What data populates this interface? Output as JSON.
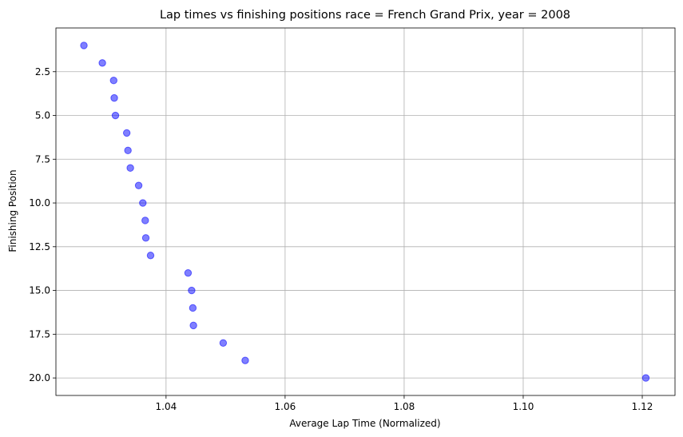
{
  "chart_data": {
    "type": "scatter",
    "title": "Lap times vs finishing positions race = French Grand Prix, year = 2008",
    "xlabel": "Average Lap Time (Normalized)",
    "ylabel": "Finishing Position",
    "xlim": [
      1.0215,
      1.1255
    ],
    "ylim": [
      21.0,
      0.0
    ],
    "y_inverted": true,
    "grid": true,
    "point_color": "#0000ff",
    "point_alpha": 0.5,
    "xticks": [
      {
        "value": 1.04,
        "label": "1.04"
      },
      {
        "value": 1.06,
        "label": "1.06"
      },
      {
        "value": 1.08,
        "label": "1.08"
      },
      {
        "value": 1.1,
        "label": "1.10"
      },
      {
        "value": 1.12,
        "label": "1.12"
      }
    ],
    "yticks": [
      {
        "value": 2.5,
        "label": "2.5"
      },
      {
        "value": 5.0,
        "label": "5.0"
      },
      {
        "value": 7.5,
        "label": "7.5"
      },
      {
        "value": 10.0,
        "label": "10.0"
      },
      {
        "value": 12.5,
        "label": "12.5"
      },
      {
        "value": 15.0,
        "label": "15.0"
      },
      {
        "value": 17.5,
        "label": "17.5"
      },
      {
        "value": 20.0,
        "label": "20.0"
      }
    ],
    "points": [
      {
        "x": 1.0262,
        "y": 1
      },
      {
        "x": 1.0293,
        "y": 2
      },
      {
        "x": 1.0312,
        "y": 3
      },
      {
        "x": 1.0313,
        "y": 4
      },
      {
        "x": 1.0315,
        "y": 5
      },
      {
        "x": 1.0334,
        "y": 6
      },
      {
        "x": 1.0336,
        "y": 7
      },
      {
        "x": 1.034,
        "y": 8
      },
      {
        "x": 1.0354,
        "y": 9
      },
      {
        "x": 1.0361,
        "y": 10
      },
      {
        "x": 1.0365,
        "y": 11
      },
      {
        "x": 1.0366,
        "y": 12
      },
      {
        "x": 1.0374,
        "y": 13
      },
      {
        "x": 1.0437,
        "y": 14
      },
      {
        "x": 1.0443,
        "y": 15
      },
      {
        "x": 1.0445,
        "y": 16
      },
      {
        "x": 1.0446,
        "y": 17
      },
      {
        "x": 1.0496,
        "y": 18
      },
      {
        "x": 1.0533,
        "y": 19
      },
      {
        "x": 1.1206,
        "y": 20
      }
    ]
  }
}
